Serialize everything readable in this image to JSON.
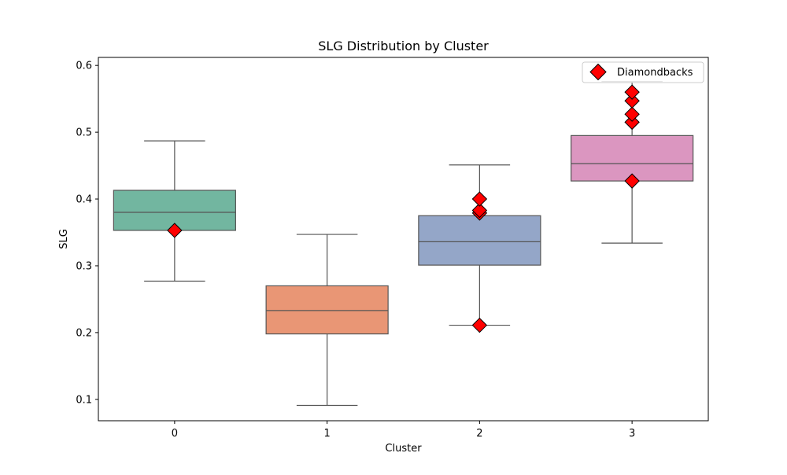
{
  "chart_data": {
    "type": "box",
    "title": "SLG Distribution by Cluster",
    "xlabel": "Cluster",
    "ylabel": "SLG",
    "categories": [
      "0",
      "1",
      "2",
      "3"
    ],
    "ylim": [
      0.068,
      0.612
    ],
    "yticks": [
      0.1,
      0.2,
      0.3,
      0.4,
      0.5,
      0.6
    ],
    "ytick_labels": [
      "0.1",
      "0.2",
      "0.3",
      "0.4",
      "0.5",
      "0.6"
    ],
    "boxes": [
      {
        "category": "0",
        "whisker_low": 0.277,
        "q1": 0.353,
        "median": 0.38,
        "q3": 0.413,
        "whisker_high": 0.487,
        "color": "#72b6a0"
      },
      {
        "category": "1",
        "whisker_low": 0.091,
        "q1": 0.198,
        "median": 0.233,
        "q3": 0.27,
        "whisker_high": 0.347,
        "color": "#e99675"
      },
      {
        "category": "2",
        "whisker_low": 0.211,
        "q1": 0.301,
        "median": 0.336,
        "q3": 0.375,
        "whisker_high": 0.451,
        "color": "#94a6c8"
      },
      {
        "category": "3",
        "whisker_low": 0.334,
        "q1": 0.427,
        "median": 0.453,
        "q3": 0.495,
        "whisker_high": 0.576,
        "color": "#db96c0"
      }
    ],
    "highlight": {
      "name": "Diamondbacks",
      "color": "#ff0000",
      "marker": "diamond",
      "points": [
        {
          "category": "0",
          "value": 0.353
        },
        {
          "category": "2",
          "value": 0.211
        },
        {
          "category": "2",
          "value": 0.379
        },
        {
          "category": "2",
          "value": 0.383
        },
        {
          "category": "2",
          "value": 0.4
        },
        {
          "category": "3",
          "value": 0.427
        },
        {
          "category": "3",
          "value": 0.515
        },
        {
          "category": "3",
          "value": 0.527
        },
        {
          "category": "3",
          "value": 0.547
        },
        {
          "category": "3",
          "value": 0.56
        }
      ]
    },
    "legend": {
      "position": "top-right",
      "entries": [
        "Diamondbacks"
      ]
    },
    "grid": false
  }
}
